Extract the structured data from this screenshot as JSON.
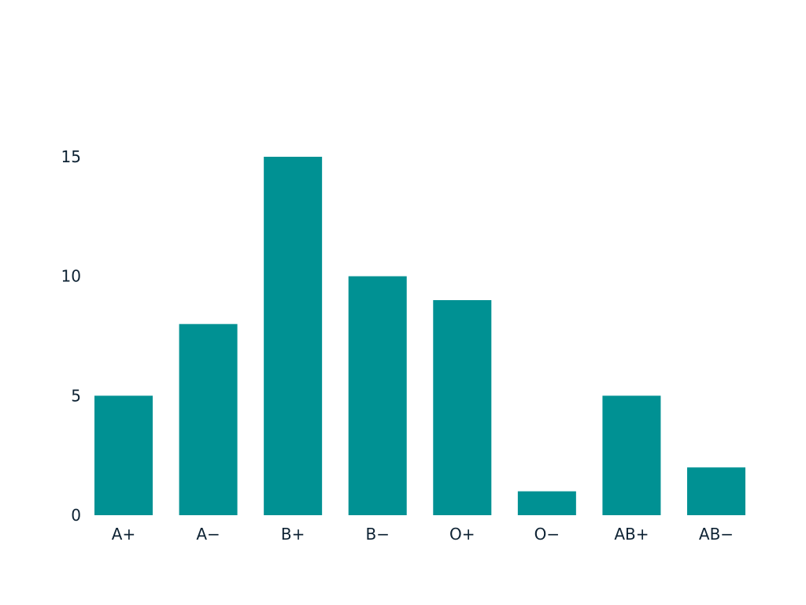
{
  "chart_data": {
    "type": "bar",
    "title": "",
    "xlabel": "",
    "ylabel": "",
    "categories": [
      "A+",
      "A−",
      "B+",
      "B−",
      "O+",
      "O−",
      "AB+",
      "AB−"
    ],
    "values": [
      5,
      8,
      15,
      10,
      9,
      1,
      5,
      2
    ],
    "ylim": [
      0,
      15
    ],
    "yticks": [
      "0",
      "5",
      "10",
      "15"
    ],
    "grid": false,
    "legend": "none",
    "bar_color": "#009193",
    "text_color": "#0d2233"
  }
}
